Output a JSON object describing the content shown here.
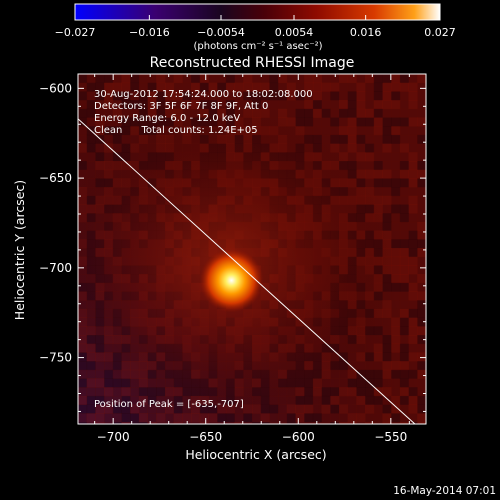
{
  "chart_data": {
    "type": "heatmap",
    "title": "Reconstructed RHESSI Image",
    "xlabel": "Heliocentric X (arcsec)",
    "ylabel": "Heliocentric Y (arcsec)",
    "xlim": [
      -719,
      -531
    ],
    "ylim": [
      -787,
      -592
    ],
    "x_ticks": [
      -700,
      -650,
      -600,
      -550
    ],
    "x_tick_labels": [
      "−700",
      "−650",
      "−600",
      "−550"
    ],
    "y_ticks": [
      -600,
      -650,
      -700,
      -750
    ],
    "y_tick_labels": [
      "−600",
      "−650",
      "−700",
      "−750"
    ],
    "colorbar": {
      "min": -0.027,
      "max": 0.027,
      "ticks": [
        -0.027,
        -0.016,
        -0.0054,
        0.0054,
        0.016,
        0.027
      ],
      "tick_labels": [
        "−0.027",
        "−0.016",
        "−0.0054",
        "0.0054",
        "0.016",
        "0.027"
      ],
      "units": "(photons cm⁻² s⁻¹ asec⁻²)"
    },
    "annotations": [
      "30-Aug-2012 17:54:24.000 to 18:02:08.000",
      "Detectors: 3F 5F 6F 7F 8F 9F, Att 0",
      "Energy Range: 6.0 - 12.0 keV",
      "Clean      Total counts: 1.24E+05"
    ],
    "peak": {
      "x": -635,
      "y": -707,
      "label": "Position of Peak = [-635,-707]"
    },
    "limb_line": {
      "x1": -719,
      "y1": -617,
      "x2": -537,
      "y2": -787
    },
    "grid": false,
    "timestamp": "16-May-2014 07:01"
  },
  "colors": {
    "background": "#000000",
    "foreground": "#ffffff",
    "colormap": [
      "#0000ff",
      "#3a0070",
      "#1a0520",
      "#4a0008",
      "#8e0a00",
      "#d83a00",
      "#ffa018",
      "#ffffff"
    ]
  }
}
